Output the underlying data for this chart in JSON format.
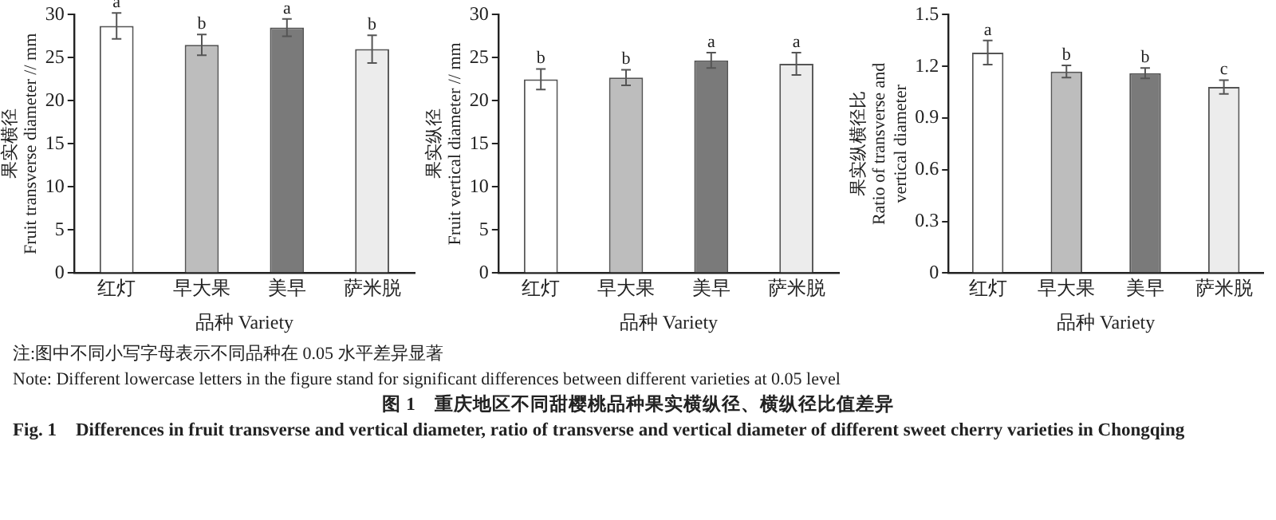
{
  "chart_data": [
    {
      "type": "bar",
      "subtitle": "Fig. 1　Differences in fruit transverse and vertical diameter, ratio of transverse and vertical diameter of different sweet cherry varieties in Chongqing",
      "xlabel": "品种 Variety",
      "ylabel": "果实横径\nFruit transverse diameter // mm",
      "categories": [
        "红灯",
        "早大果",
        "美早",
        "萨米脱"
      ],
      "values": [
        28.7,
        26.5,
        28.5,
        26.0
      ],
      "errors": [
        1.5,
        1.2,
        1.0,
        1.6
      ],
      "colors": [
        "#ffffff",
        "#bdbdbd",
        "#7a7a7a",
        "#ececec"
      ],
      "ylim": [
        0,
        30
      ],
      "yticks": [
        0,
        5,
        10,
        15,
        20,
        25,
        30
      ],
      "grid": false,
      "legend": false,
      "annotations": [
        {
          "text": "a",
          "x": "红灯",
          "y": 30.2
        },
        {
          "text": "b",
          "x": "早大果",
          "y": 27.7
        },
        {
          "text": "a",
          "x": "美早",
          "y": 29.5
        },
        {
          "text": "b",
          "x": "萨米脱",
          "y": 27.6
        },
        "注:图中不同小写字母表示不同品种在 0.05 水平差异显著",
        "Note: Different lowercase letters in the figure stand for significant differences between different varieties at 0.05 level"
      ]
    },
    {
      "type": "bar",
      "title": "图 1　重庆地区不同甜樱桃品种果实横纵径、横纵径比值差异",
      "xlabel": "品种 Variety",
      "ylabel": "果实纵径\nFruit vertical diameter // mm",
      "categories": [
        "红灯",
        "早大果",
        "美早",
        "萨米脱"
      ],
      "values": [
        22.5,
        22.7,
        24.7,
        24.3
      ],
      "errors": [
        1.2,
        0.9,
        0.9,
        1.3
      ],
      "colors": [
        "#ffffff",
        "#bdbdbd",
        "#7a7a7a",
        "#ececec"
      ],
      "ylim": [
        0,
        30
      ],
      "yticks": [
        0,
        5,
        10,
        15,
        20,
        25,
        30
      ],
      "grid": false,
      "legend": false,
      "annotations": [
        {
          "text": "b",
          "x": "红灯",
          "y": 23.7
        },
        {
          "text": "b",
          "x": "早大果",
          "y": 23.6
        },
        {
          "text": "a",
          "x": "美早",
          "y": 25.6
        },
        {
          "text": "a",
          "x": "萨米脱",
          "y": 25.6
        }
      ]
    },
    {
      "type": "bar",
      "xlabel": "品种 Variety",
      "ylabel": "果实纵横径比\nRatio of transverse and\nvertical diameter",
      "categories": [
        "红灯",
        "早大果",
        "美早",
        "萨米脱"
      ],
      "values": [
        1.28,
        1.17,
        1.16,
        1.08
      ],
      "errors": [
        0.07,
        0.035,
        0.03,
        0.04
      ],
      "colors": [
        "#ffffff",
        "#bdbdbd",
        "#7a7a7a",
        "#ececec"
      ],
      "ylim": [
        0,
        1.5
      ],
      "yticks": [
        {
          "value": 0,
          "label": "0"
        },
        {
          "value": 0.3,
          "label": "0.3"
        },
        {
          "value": 0.6,
          "label": "0.6"
        },
        {
          "value": 0.9,
          "label": "0.9"
        },
        {
          "value": 1.2,
          "label": "1.2"
        },
        {
          "value": 1.5,
          "label": "1.5"
        }
      ],
      "grid": false,
      "legend": false,
      "annotations": [
        {
          "text": "a",
          "x": "红灯",
          "y": 1.35
        },
        {
          "text": "b",
          "x": "早大果",
          "y": 1.205
        },
        {
          "text": "b",
          "x": "美早",
          "y": 1.19
        },
        {
          "text": "c",
          "x": "萨米脱",
          "y": 1.12
        }
      ]
    }
  ]
}
